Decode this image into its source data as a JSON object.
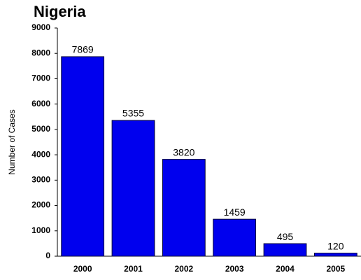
{
  "chart_data": {
    "type": "bar",
    "title": "Nigeria",
    "y_label": "Number of Cases",
    "categories": [
      "2000",
      "2001",
      "2002",
      "2003",
      "2004",
      "2005"
    ],
    "values": [
      7869,
      5355,
      3820,
      1459,
      495,
      120
    ],
    "color": "#0000ee",
    "ylim": [
      0,
      9000
    ],
    "yticks": [
      0,
      1000,
      2000,
      3000,
      4000,
      5000,
      6000,
      7000,
      8000,
      9000
    ],
    "grid": false
  }
}
